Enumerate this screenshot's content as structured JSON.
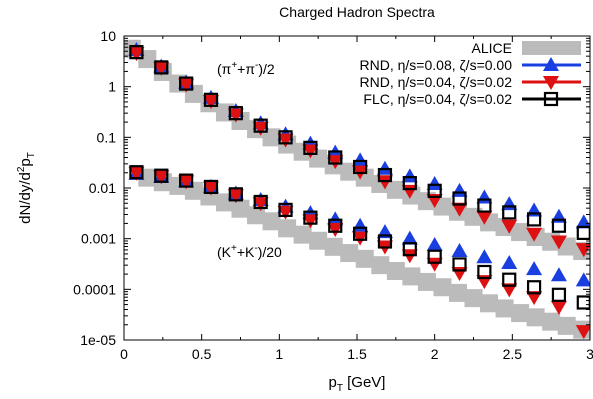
{
  "chart_data": {
    "type": "scatter",
    "title": "Charged Hadron Spectra",
    "xlabel": "p_T [GeV]",
    "ylabel": "dN/dy/d^2p_T",
    "xlim": [
      0,
      3
    ],
    "ylim": [
      1e-05,
      10
    ],
    "yscale": "log",
    "xticks": [
      "0",
      "0.5",
      "1",
      "1.5",
      "2",
      "2.5",
      "3"
    ],
    "yticks": [
      "1e-05",
      "0.0001",
      "0.001",
      "0.01",
      "0.1",
      "1",
      "10"
    ],
    "grid": false,
    "legend_position": "top-right",
    "annotations": [
      {
        "text": "(π⁺+π⁻)/2",
        "x": 0.85,
        "y": 2.0
      },
      {
        "text": "(K⁺+K⁻)/20",
        "x": 0.85,
        "y": 0.0004
      }
    ],
    "series": [
      {
        "name": "ALICE",
        "color": "#bbbbbb",
        "marker": "thick-band",
        "groups": [
          {
            "x": [
              0.05,
              0.15,
              0.25,
              0.35,
              0.45,
              0.55,
              0.65,
              0.75,
              0.85,
              0.95,
              1.05,
              1.15,
              1.25,
              1.35,
              1.45,
              1.55,
              1.65,
              1.75,
              1.85,
              1.95,
              2.05,
              2.15,
              2.25,
              2.35,
              2.45,
              2.55,
              2.65,
              2.75,
              2.85,
              2.95
            ],
            "y": [
              5.6,
              3.5,
              1.95,
              1.15,
              0.72,
              0.47,
              0.31,
              0.21,
              0.145,
              0.1,
              0.072,
              0.052,
              0.038,
              0.028,
              0.021,
              0.016,
              0.012,
              0.0092,
              0.0071,
              0.0055,
              0.0043,
              0.0034,
              0.0027,
              0.0021,
              0.0017,
              0.00135,
              0.00108,
              0.00087,
              0.0007,
              0.00057
            ]
          },
          {
            "x": [
              0.15,
              0.25,
              0.35,
              0.45,
              0.55,
              0.65,
              0.75,
              0.85,
              0.95,
              1.05,
              1.15,
              1.25,
              1.35,
              1.45,
              1.55,
              1.65,
              1.75,
              1.85,
              1.95,
              2.05,
              2.15,
              2.25,
              2.35,
              2.45,
              2.55,
              2.65,
              2.75,
              2.85,
              2.95
            ],
            "y": [
              0.016,
              0.013,
              0.011,
              0.0088,
              0.0068,
              0.0052,
              0.0039,
              0.0029,
              0.0022,
              0.0016,
              0.0012,
              0.00091,
              0.00069,
              0.00052,
              0.0004,
              0.0003,
              0.00023,
              0.00018,
              0.00014,
              0.00011,
              8.5e-05,
              6.7e-05,
              5.3e-05,
              4.2e-05,
              3.4e-05,
              2.8e-05,
              2.3e-05,
              1.9e-05,
              1.6e-05
            ]
          }
        ]
      },
      {
        "name": "RND, η/s=0.08, ζ/s=0.00",
        "color": "#1a3fe0",
        "marker": "triangle-up",
        "groups": [
          {
            "x": [
              0.08,
              0.24,
              0.4,
              0.56,
              0.72,
              0.88,
              1.04,
              1.2,
              1.36,
              1.52,
              1.68,
              1.84,
              2.0,
              2.16,
              2.32,
              2.48,
              2.64,
              2.8,
              2.96
            ],
            "y": [
              5.3,
              2.5,
              1.2,
              0.6,
              0.33,
              0.19,
              0.115,
              0.075,
              0.05,
              0.035,
              0.024,
              0.017,
              0.012,
              0.0088,
              0.0065,
              0.0048,
              0.0036,
              0.0027,
              0.0021
            ]
          },
          {
            "x": [
              0.08,
              0.24,
              0.4,
              0.56,
              0.72,
              0.88,
              1.04,
              1.2,
              1.36,
              1.52,
              1.68,
              1.84,
              2.0,
              2.16,
              2.32,
              2.48,
              2.64,
              2.8,
              2.96
            ],
            "y": [
              0.019,
              0.0165,
              0.0135,
              0.0105,
              0.0078,
              0.0058,
              0.0043,
              0.0032,
              0.0024,
              0.0018,
              0.00135,
              0.001,
              0.00075,
              0.00057,
              0.00043,
              0.00033,
              0.00025,
              0.00019,
              0.00015
            ]
          }
        ]
      },
      {
        "name": "RND, η/s=0.04, ζ/s=0.02",
        "color": "#dd1111",
        "marker": "triangle-down",
        "groups": [
          {
            "x": [
              0.08,
              0.24,
              0.4,
              0.56,
              0.72,
              0.88,
              1.04,
              1.2,
              1.36,
              1.52,
              1.68,
              1.84,
              2.0,
              2.16,
              2.32,
              2.48,
              2.64,
              2.8,
              2.96
            ],
            "y": [
              4.6,
              2.35,
              1.1,
              0.52,
              0.28,
              0.155,
              0.09,
              0.055,
              0.034,
              0.021,
              0.0135,
              0.0088,
              0.0058,
              0.0039,
              0.0027,
              0.0018,
              0.00125,
              0.00088,
              0.00062
            ]
          },
          {
            "x": [
              0.08,
              0.24,
              0.4,
              0.56,
              0.72,
              0.88,
              1.04,
              1.2,
              1.36,
              1.52,
              1.68,
              1.84,
              2.0,
              2.16,
              2.32,
              2.48,
              2.64,
              2.8,
              2.96
            ],
            "y": [
              0.02,
              0.017,
              0.0135,
              0.0102,
              0.0072,
              0.005,
              0.0034,
              0.0023,
              0.00155,
              0.00105,
              0.0007,
              0.00047,
              0.00032,
              0.00021,
              0.000145,
              0.0001,
              7e-05,
              4.5e-05,
              1.5e-05
            ]
          }
        ]
      },
      {
        "name": "FLC, η/s=0.04, ζ/s=0.02",
        "color": "#000000",
        "marker": "square-open",
        "groups": [
          {
            "x": [
              0.08,
              0.24,
              0.4,
              0.56,
              0.72,
              0.88,
              1.04,
              1.2,
              1.36,
              1.52,
              1.68,
              1.84,
              2.0,
              2.16,
              2.32,
              2.48,
              2.64,
              2.8,
              2.96
            ],
            "y": [
              4.8,
              2.4,
              1.15,
              0.55,
              0.3,
              0.17,
              0.1,
              0.062,
              0.04,
              0.026,
              0.018,
              0.0125,
              0.0088,
              0.0062,
              0.0045,
              0.0033,
              0.0024,
              0.0018,
              0.0013
            ]
          },
          {
            "x": [
              0.08,
              0.24,
              0.4,
              0.56,
              0.72,
              0.88,
              1.04,
              1.2,
              1.36,
              1.52,
              1.68,
              1.84,
              2.0,
              2.16,
              2.32,
              2.48,
              2.64,
              2.8,
              2.96
            ],
            "y": [
              0.0205,
              0.0175,
              0.014,
              0.0105,
              0.0075,
              0.0053,
              0.0037,
              0.0026,
              0.0018,
              0.00125,
              0.00088,
              0.00062,
              0.00044,
              0.00031,
              0.00022,
              0.000155,
              0.00011,
              7.8e-05,
              5.5e-05
            ]
          }
        ]
      }
    ]
  }
}
